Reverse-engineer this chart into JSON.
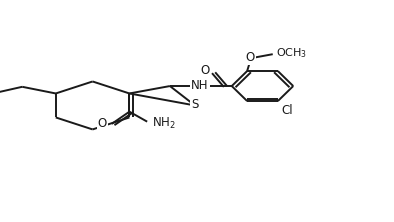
{
  "background": "#ffffff",
  "line_color": "#1a1a1a",
  "line_width": 1.4,
  "font_size": 8.5,
  "xlim": [
    0,
    10
  ],
  "ylim": [
    0,
    10
  ]
}
